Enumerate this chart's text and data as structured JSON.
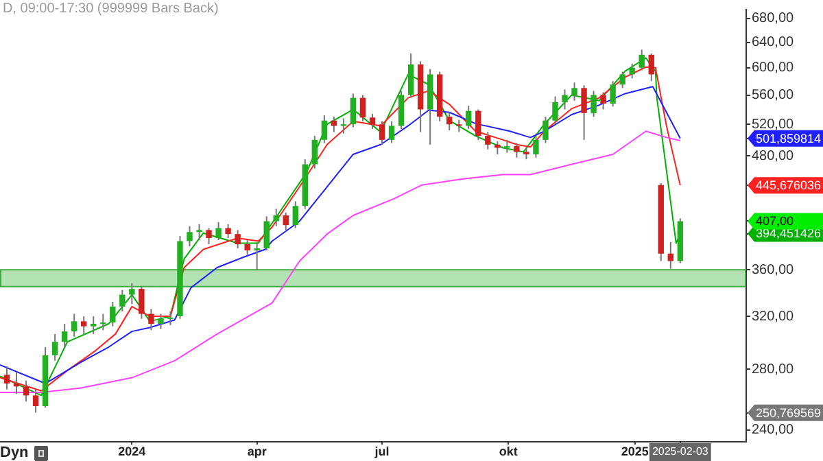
{
  "chart_data": {
    "type": "candlestick",
    "title": "D, 09:00-17:30 (999999 Bars Back)",
    "x": [
      "2023-10-02",
      "2023-10-09",
      "2023-10-16",
      "2023-10-23",
      "2023-10-30",
      "2023-11-06",
      "2023-11-13",
      "2023-11-20",
      "2023-11-27",
      "2023-12-04",
      "2023-12-11",
      "2023-12-18",
      "2023-12-25",
      "2024-01-01",
      "2024-01-08",
      "2024-01-15",
      "2024-01-22",
      "2024-01-29",
      "2024-02-05",
      "2024-02-12",
      "2024-02-19",
      "2024-02-26",
      "2024-03-04",
      "2024-03-11",
      "2024-03-18",
      "2024-03-25",
      "2024-04-01",
      "2024-04-08",
      "2024-04-15",
      "2024-04-22",
      "2024-04-29",
      "2024-05-06",
      "2024-05-13",
      "2024-05-20",
      "2024-05-27",
      "2024-06-03",
      "2024-06-10",
      "2024-06-17",
      "2024-06-24",
      "2024-07-01",
      "2024-07-08",
      "2024-07-15",
      "2024-07-22",
      "2024-07-29",
      "2024-08-05",
      "2024-08-12",
      "2024-08-19",
      "2024-08-26",
      "2024-09-02",
      "2024-09-09",
      "2024-09-16",
      "2024-09-23",
      "2024-09-30",
      "2024-10-07",
      "2024-10-14",
      "2024-10-21",
      "2024-10-28",
      "2024-11-04",
      "2024-11-11",
      "2024-11-18",
      "2024-11-25",
      "2024-12-02",
      "2024-12-09",
      "2024-12-16",
      "2024-12-23",
      "2024-12-30",
      "2025-01-06",
      "2025-01-13",
      "2025-01-20",
      "2025-01-27",
      "2025-02-03"
    ],
    "ohlc": [
      [
        276,
        282,
        266,
        270
      ],
      [
        270,
        278,
        263,
        268
      ],
      [
        268,
        272,
        258,
        262
      ],
      [
        262,
        266,
        250.769569,
        255
      ],
      [
        255,
        296,
        254,
        290
      ],
      [
        290,
        306,
        286,
        300
      ],
      [
        300,
        314,
        296,
        308
      ],
      [
        308,
        322,
        304,
        316
      ],
      [
        316,
        320,
        306,
        312
      ],
      [
        312,
        320,
        306,
        314
      ],
      [
        314,
        322,
        309,
        315
      ],
      [
        315,
        332,
        312,
        328
      ],
      [
        328,
        342,
        324,
        338
      ],
      [
        338,
        348,
        330,
        343
      ],
      [
        343,
        345,
        318,
        322
      ],
      [
        322,
        326,
        309,
        314
      ],
      [
        314,
        322,
        310,
        318
      ],
      [
        318,
        324,
        313,
        319
      ],
      [
        320,
        392,
        318,
        387
      ],
      [
        387,
        402,
        382,
        396
      ],
      [
        396,
        404,
        388,
        398
      ],
      [
        398,
        400,
        384,
        390
      ],
      [
        390,
        406,
        388,
        400
      ],
      [
        400,
        404,
        390,
        394
      ],
      [
        394,
        398,
        380,
        384
      ],
      [
        384,
        388,
        374,
        378
      ],
      [
        378,
        386,
        360,
        380
      ],
      [
        380,
        412,
        378,
        407
      ],
      [
        407,
        420,
        402,
        413
      ],
      [
        413,
        416,
        398,
        403
      ],
      [
        403,
        428,
        400,
        423
      ],
      [
        423,
        476,
        420,
        470
      ],
      [
        470,
        505,
        465,
        500
      ],
      [
        500,
        532,
        496,
        525
      ],
      [
        525,
        530,
        510,
        518
      ],
      [
        518,
        528,
        508,
        520
      ],
      [
        520,
        562,
        516,
        556
      ],
      [
        556,
        560,
        524,
        529
      ],
      [
        529,
        534,
        514,
        520
      ],
      [
        520,
        524,
        494,
        500
      ],
      [
        500,
        524,
        496,
        518
      ],
      [
        518,
        566,
        514,
        560
      ],
      [
        560,
        622,
        556,
        605
      ],
      [
        605,
        610,
        510,
        540
      ],
      [
        540,
        598,
        494,
        590
      ],
      [
        590,
        594,
        524,
        530
      ],
      [
        530,
        536,
        512,
        520
      ],
      [
        520,
        526,
        510,
        518
      ],
      [
        518,
        545,
        514,
        538
      ],
      [
        538,
        540,
        500,
        505
      ],
      [
        505,
        510,
        488,
        494
      ],
      [
        494,
        498,
        482,
        490
      ],
      [
        490,
        500,
        484,
        492
      ],
      [
        492,
        496,
        478,
        485
      ],
      [
        485,
        490,
        476,
        482
      ],
      [
        482,
        505,
        478,
        500
      ],
      [
        500,
        530,
        496,
        525
      ],
      [
        525,
        558,
        520,
        550
      ],
      [
        550,
        568,
        540,
        560
      ],
      [
        560,
        578,
        552,
        570
      ],
      [
        570,
        574,
        500,
        535
      ],
      [
        535,
        566,
        530,
        560
      ],
      [
        560,
        564,
        540,
        548
      ],
      [
        548,
        580,
        544,
        575
      ],
      [
        575,
        594,
        570,
        590
      ],
      [
        590,
        606,
        584,
        600
      ],
      [
        600,
        628,
        596,
        620
      ],
      [
        620,
        622,
        580,
        590
      ],
      [
        446,
        448,
        368,
        375
      ],
      [
        375,
        386,
        361,
        368
      ],
      [
        368,
        410,
        366,
        407
      ]
    ],
    "series": [
      {
        "type": "line",
        "color": "#ff40ff",
        "x": [
          "2023-09-27",
          "2023-10-27",
          "2023-11-25",
          "2024-01-01",
          "2024-02-01",
          "2024-03-03",
          "2024-04-12",
          "2024-05-02",
          "2024-05-22",
          "2024-06-10",
          "2024-07-10",
          "2024-07-30",
          "2024-08-29",
          "2024-09-27",
          "2024-10-17",
          "2024-11-16",
          "2024-12-16",
          "2025-01-09",
          "2025-01-24",
          "2025-02-03"
        ],
        "values": [
          264,
          264,
          267,
          274,
          286,
          306,
          331,
          368,
          394,
          413,
          431,
          446,
          453,
          458,
          458,
          470,
          482,
          511,
          503,
          499
        ]
      },
      {
        "type": "line",
        "color": "#2020ff",
        "x": [
          "2023-09-27",
          "2023-10-30",
          "2023-11-25",
          "2023-12-15",
          "2024-01-01",
          "2024-01-14",
          "2024-02-01",
          "2024-02-13",
          "2024-03-03",
          "2024-03-23",
          "2024-04-07",
          "2024-04-12",
          "2024-05-02",
          "2024-05-22",
          "2024-06-10",
          "2024-06-30",
          "2024-07-20",
          "2024-08-04",
          "2024-08-19",
          "2024-09-07",
          "2024-10-02",
          "2024-10-17",
          "2024-10-27",
          "2024-11-16",
          "2024-12-06",
          "2024-12-25",
          "2025-01-14",
          "2025-01-24",
          "2025-02-03"
        ],
        "values": [
          283,
          270,
          285,
          296,
          308,
          311,
          317,
          344,
          362,
          372,
          379,
          387,
          407,
          444,
          482,
          494,
          518,
          539,
          536,
          521,
          511,
          503,
          511,
          533,
          546,
          562,
          572,
          536,
          501.859814
        ]
      },
      {
        "type": "line",
        "color": "#ff2020",
        "x": [
          "2023-09-27",
          "2023-10-27",
          "2023-11-15",
          "2023-12-05",
          "2023-12-20",
          "2024-01-01",
          "2024-01-14",
          "2024-01-29",
          "2024-02-08",
          "2024-02-22",
          "2024-03-18",
          "2024-04-02",
          "2024-04-12",
          "2024-05-02",
          "2024-05-22",
          "2024-06-10",
          "2024-06-30",
          "2024-07-20",
          "2024-08-04",
          "2024-08-19",
          "2024-09-07",
          "2024-09-27",
          "2024-10-07",
          "2024-10-17",
          "2024-10-27",
          "2024-11-16",
          "2024-12-06",
          "2024-12-25",
          "2025-01-09",
          "2025-01-16",
          "2025-01-24",
          "2025-02-03"
        ],
        "values": [
          274,
          265,
          279,
          293,
          306,
          328,
          320,
          320,
          362,
          379,
          390,
          387,
          401,
          444,
          494,
          524,
          518,
          556,
          566,
          547,
          511,
          500,
          494,
          491,
          511,
          541,
          556,
          586,
          601,
          600,
          518,
          445.676036
        ]
      },
      {
        "type": "line",
        "color": "#00b000",
        "x": [
          "2023-09-27",
          "2023-10-27",
          "2023-11-15",
          "2023-12-15",
          "2024-01-01",
          "2024-01-14",
          "2024-01-29",
          "2024-02-08",
          "2024-02-22",
          "2024-03-18",
          "2024-04-02",
          "2024-04-12",
          "2024-05-07",
          "2024-05-22",
          "2024-06-10",
          "2024-06-30",
          "2024-07-20",
          "2024-08-04",
          "2024-08-19",
          "2024-09-07",
          "2024-09-27",
          "2024-10-12",
          "2024-10-27",
          "2024-11-16",
          "2024-12-06",
          "2024-12-25",
          "2025-01-09",
          "2025-01-16",
          "2025-01-17",
          "2025-01-31",
          "2025-02-03"
        ],
        "values": [
          275,
          262,
          300,
          314,
          338,
          316,
          320,
          370,
          395,
          385,
          385,
          405,
          460,
          520,
          540,
          510,
          590,
          575,
          525,
          505,
          490,
          485,
          520,
          560,
          552,
          595,
          615,
          595,
          556,
          385,
          394.451426
        ]
      }
    ],
    "xlim": [
      "2023-09-27",
      "2025-03-23"
    ],
    "xticks": [
      {
        "value": "2024-01-01",
        "label": "2024"
      },
      {
        "value": "2024-04-01",
        "label": "apr"
      },
      {
        "value": "2024-07-01",
        "label": "jul"
      },
      {
        "value": "2024-10-01",
        "label": "okt"
      },
      {
        "value": "2025-01-01",
        "label": "2025"
      },
      {
        "value": "2025-02-03",
        "label": "2025-02-03"
      }
    ],
    "ylim": [
      233,
      695
    ],
    "log": true,
    "yticks": [
      {
        "value": 240,
        "label": "240,00"
      },
      {
        "value": 280,
        "label": "280,00"
      },
      {
        "value": 320,
        "label": "320,00"
      },
      {
        "value": 250.769569,
        "label": "250,769569"
      },
      {
        "value": 360,
        "label": "360,00"
      },
      {
        "value": 394.451426,
        "label": "394,451426"
      },
      {
        "value": 407,
        "label": "407,00"
      },
      {
        "value": 445.676036,
        "label": "445,676036"
      },
      {
        "value": 480,
        "label": "480,00"
      },
      {
        "value": 501.859814,
        "label": "501,859814"
      },
      {
        "value": 520,
        "label": "520,00"
      },
      {
        "value": 560,
        "label": "560,00"
      },
      {
        "value": 600,
        "label": "600,00"
      },
      {
        "value": 640,
        "label": "640,00"
      },
      {
        "value": 680,
        "label": "680,00"
      }
    ],
    "grid": false,
    "legend": false,
    "bands": [
      {
        "axis": "y",
        "from": 345,
        "to": 360,
        "color": "#b3e3b3"
      }
    ],
    "annotations": [
      "Dyn"
    ]
  }
}
